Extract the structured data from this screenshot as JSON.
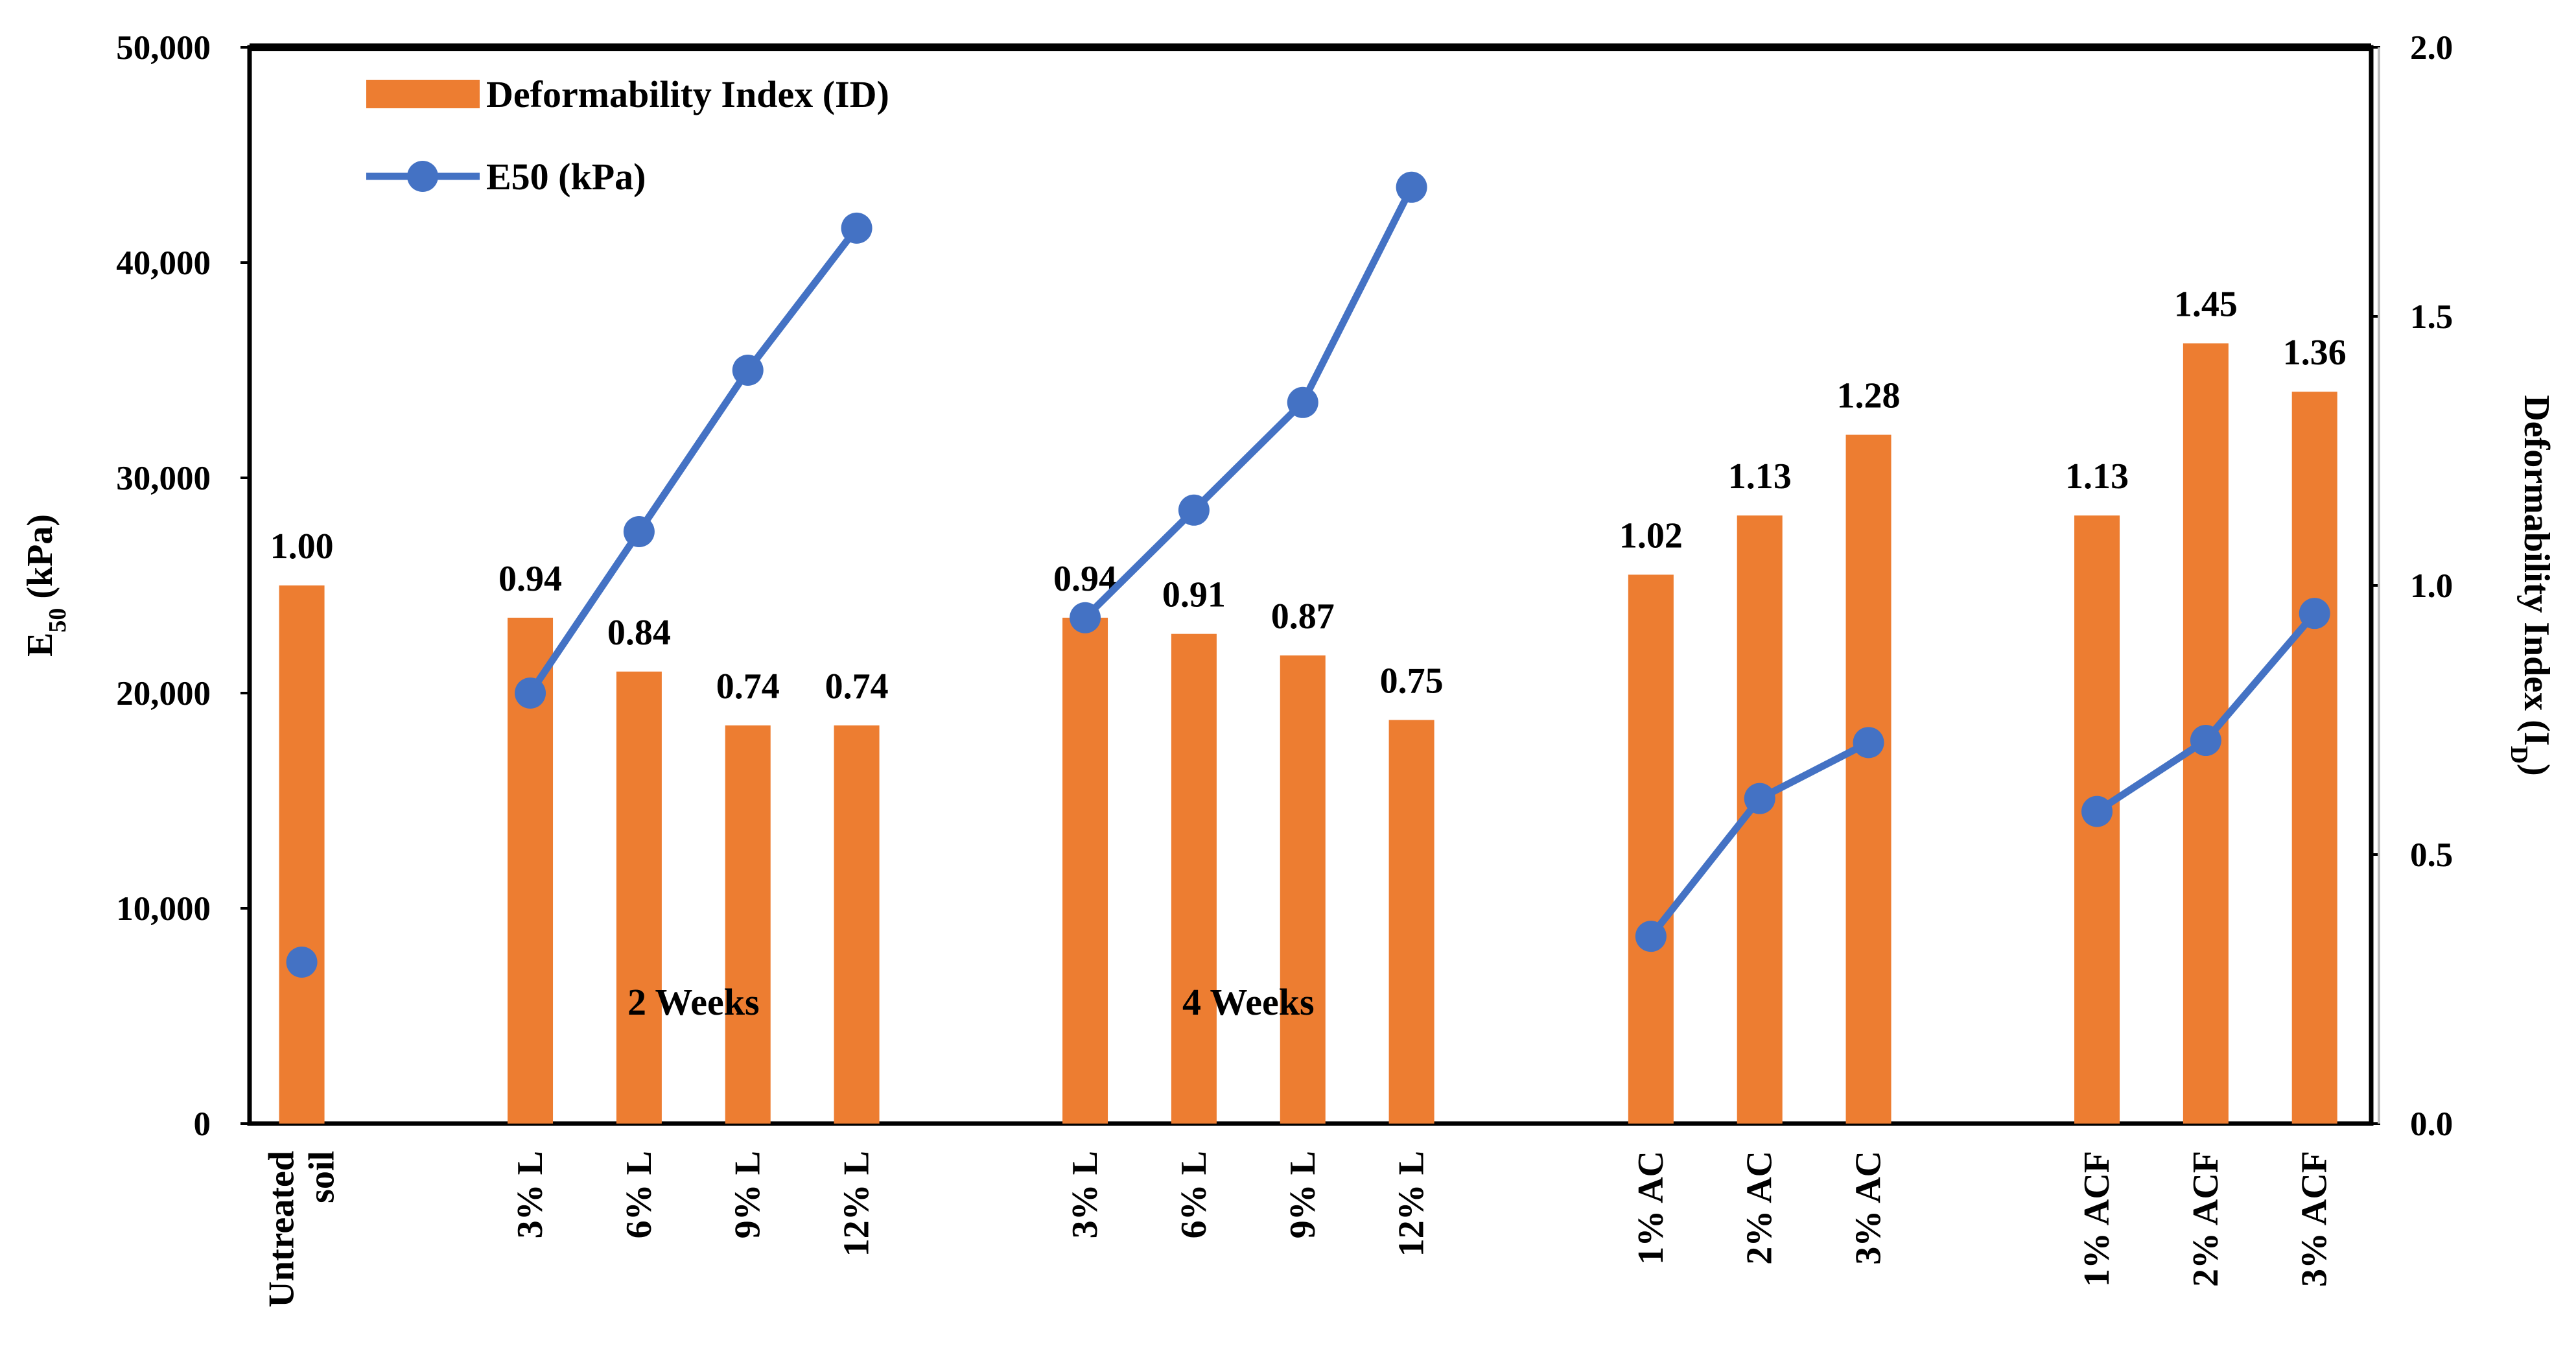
{
  "chart_data": {
    "type": "bar+line",
    "categories": [
      "Untreated soil",
      "3% L",
      "6% L",
      "9% L",
      "12% L",
      "3% L",
      "6% L",
      "9% L",
      "12% L",
      "1% AC",
      "2% AC",
      "3% AC",
      "1% ACF",
      "2% ACF",
      "3% ACF"
    ],
    "category_label_lines": [
      [
        "Untreated",
        "soil"
      ],
      [
        "3% L"
      ],
      [
        "6% L"
      ],
      [
        "9% L"
      ],
      [
        "12% L"
      ],
      [
        "3% L"
      ],
      [
        "6% L"
      ],
      [
        "9% L"
      ],
      [
        "12% L"
      ],
      [
        "1% AC"
      ],
      [
        "2% AC"
      ],
      [
        "3% AC"
      ],
      [
        "1% ACF"
      ],
      [
        "2% ACF"
      ],
      [
        "3% ACF"
      ]
    ],
    "series": [
      {
        "name": "Deformability Index (ID)",
        "kind": "bar",
        "axis": "right",
        "color": "#ED7D31",
        "values": [
          1.0,
          0.94,
          0.84,
          0.74,
          0.74,
          0.94,
          0.91,
          0.87,
          0.75,
          1.02,
          1.13,
          1.28,
          1.13,
          1.45,
          1.36
        ],
        "labels": [
          "1.00",
          "0.94",
          "0.84",
          "0.74",
          "0.74",
          "0.94",
          "0.91",
          "0.87",
          "0.75",
          "1.02",
          "1.13",
          "1.28",
          "1.13",
          "1.45",
          "1.36"
        ]
      },
      {
        "name": "E50 (kPa)",
        "kind": "line",
        "axis": "left",
        "color": "#4472C4",
        "segments": [
          [
            {
              "i": 0,
              "v": 7500
            }
          ],
          [
            {
              "i": 1,
              "v": 20000
            },
            {
              "i": 2,
              "v": 27500
            },
            {
              "i": 3,
              "v": 35000
            },
            {
              "i": 4,
              "v": 41600
            }
          ],
          [
            {
              "i": 5,
              "v": 23500
            },
            {
              "i": 6,
              "v": 28500
            },
            {
              "i": 7,
              "v": 33500
            },
            {
              "i": 8,
              "v": 43500
            }
          ],
          [
            {
              "i": 9,
              "v": 8700
            },
            {
              "i": 10,
              "v": 15100
            },
            {
              "i": 11,
              "v": 17700
            }
          ],
          [
            {
              "i": 12,
              "v": 14500
            },
            {
              "i": 13,
              "v": 17800
            },
            {
              "i": 14,
              "v": 23700
            }
          ]
        ]
      }
    ],
    "left_axis": {
      "title_main": "E",
      "title_sub": "50",
      "title_rest": " (kPa)",
      "range": [
        0,
        50000
      ],
      "ticks": [
        0,
        10000,
        20000,
        30000,
        40000,
        50000
      ],
      "tick_labels": [
        "0",
        "10,000",
        "20,000",
        "30,000",
        "40,000",
        "50,000"
      ]
    },
    "right_axis": {
      "title_main": "Deformability Index (I",
      "title_sub": "D",
      "title_rest": ")",
      "range": [
        0,
        2.0
      ],
      "ticks": [
        0,
        0.5,
        1.0,
        1.5,
        2.0
      ],
      "tick_labels": [
        "0.0",
        "0.5",
        "1.0",
        "1.5",
        "2.0"
      ]
    },
    "group_annotations": [
      {
        "text": "2 Weeks",
        "center_between": [
          2,
          3
        ]
      },
      {
        "text": "4 Weeks",
        "center_between": [
          6,
          7
        ]
      }
    ],
    "legend": {
      "placement": "top-left",
      "entries": [
        {
          "label": "Deformability Index (ID)",
          "kind": "bar",
          "color": "#ED7D31"
        },
        {
          "label": "E50 (kPa)",
          "kind": "line",
          "color": "#4472C4"
        }
      ]
    },
    "grid": false
  }
}
